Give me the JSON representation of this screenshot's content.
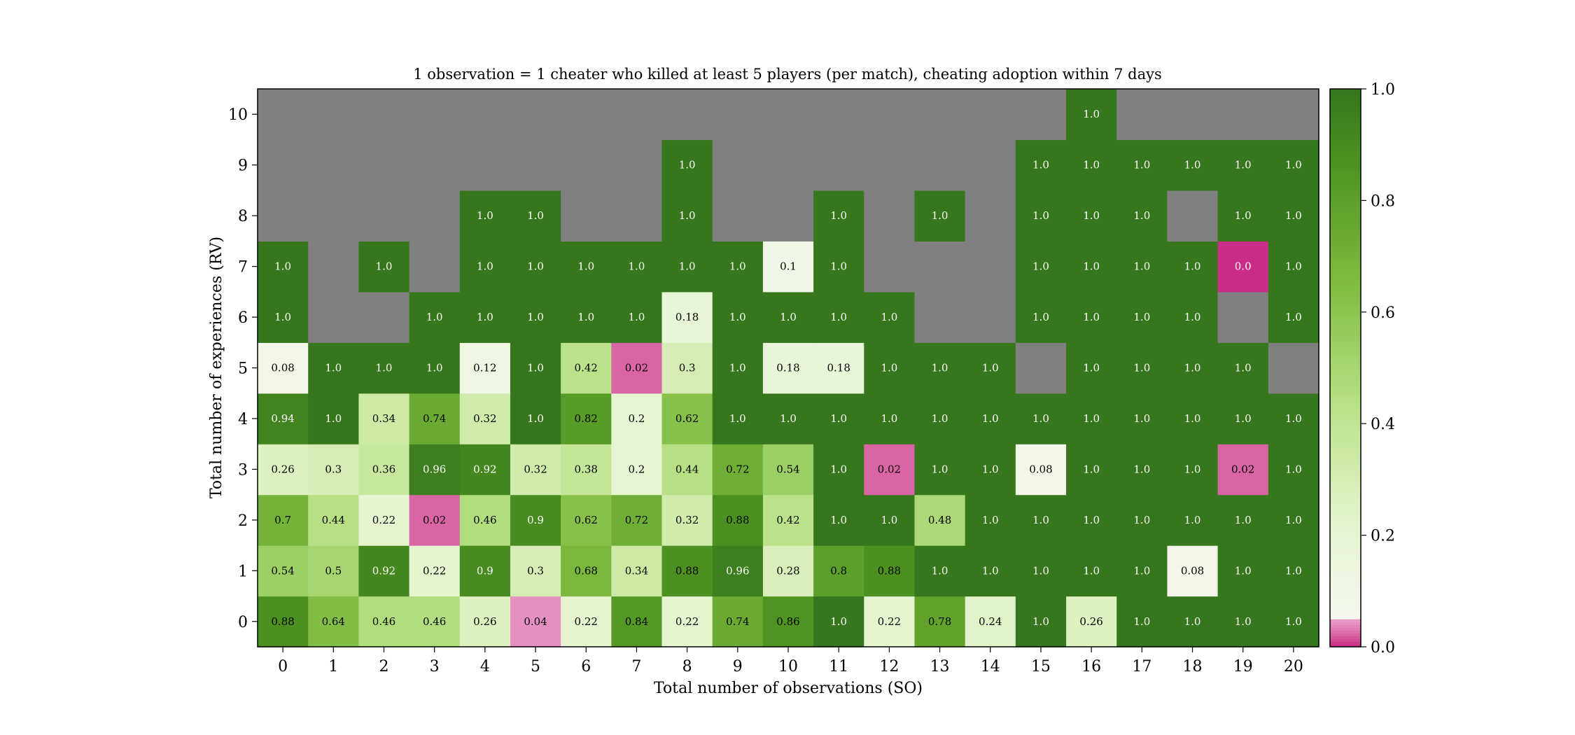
{
  "chart_data": {
    "type": "heatmap",
    "title": "1 observation = 1 cheater who killed at least 5 players (per match), cheating adoption within 7 days",
    "xlabel": "Total number of observations (SO)",
    "ylabel": "Total number of experiences (RV)",
    "x_ticks": [
      "0",
      "1",
      "2",
      "3",
      "4",
      "5",
      "6",
      "7",
      "8",
      "9",
      "10",
      "11",
      "12",
      "13",
      "14",
      "15",
      "16",
      "17",
      "18",
      "19",
      "20"
    ],
    "y_ticks": [
      "0",
      "1",
      "2",
      "3",
      "4",
      "5",
      "6",
      "7",
      "8",
      "9",
      "10"
    ],
    "colorbar": {
      "min": 0.0,
      "max": 1.0,
      "ticks": [
        "0.0",
        "0.2",
        "0.4",
        "0.6",
        "0.8",
        "1.0"
      ],
      "colormap": "PiYG",
      "missing_color": "#808080"
    },
    "rows_from_y0": [
      [
        0.88,
        0.64,
        0.46,
        0.46,
        0.26,
        0.04,
        0.22,
        0.84,
        0.22,
        0.74,
        0.86,
        1.0,
        0.22,
        0.78,
        0.24,
        1.0,
        0.26,
        1.0,
        1.0,
        1.0,
        1.0
      ],
      [
        0.54,
        0.5,
        0.92,
        0.22,
        0.9,
        0.3,
        0.68,
        0.34,
        0.88,
        0.96,
        0.28,
        0.8,
        0.88,
        1.0,
        1.0,
        1.0,
        1.0,
        1.0,
        0.08,
        1.0,
        1.0
      ],
      [
        0.7,
        0.44,
        0.22,
        0.02,
        0.46,
        0.9,
        0.62,
        0.72,
        0.32,
        0.88,
        0.42,
        1.0,
        1.0,
        0.48,
        1.0,
        1.0,
        1.0,
        1.0,
        1.0,
        1.0,
        1.0
      ],
      [
        0.26,
        0.3,
        0.36,
        0.96,
        0.92,
        0.32,
        0.38,
        0.2,
        0.44,
        0.72,
        0.54,
        1.0,
        0.02,
        1.0,
        1.0,
        0.08,
        1.0,
        1.0,
        1.0,
        0.02,
        1.0
      ],
      [
        0.94,
        1.0,
        0.34,
        0.74,
        0.32,
        1.0,
        0.82,
        0.2,
        0.62,
        1.0,
        1.0,
        1.0,
        1.0,
        1.0,
        1.0,
        1.0,
        1.0,
        1.0,
        1.0,
        1.0,
        1.0
      ],
      [
        0.08,
        1.0,
        1.0,
        1.0,
        0.12,
        1.0,
        0.42,
        0.02,
        0.3,
        1.0,
        0.18,
        0.18,
        1.0,
        1.0,
        1.0,
        null,
        1.0,
        1.0,
        1.0,
        1.0,
        null
      ],
      [
        1.0,
        null,
        null,
        1.0,
        1.0,
        1.0,
        1.0,
        1.0,
        0.18,
        1.0,
        1.0,
        1.0,
        1.0,
        null,
        null,
        1.0,
        1.0,
        1.0,
        1.0,
        null,
        1.0
      ],
      [
        1.0,
        null,
        1.0,
        null,
        1.0,
        1.0,
        1.0,
        1.0,
        1.0,
        1.0,
        0.1,
        1.0,
        null,
        null,
        null,
        1.0,
        1.0,
        1.0,
        1.0,
        0.0,
        1.0
      ],
      [
        null,
        null,
        null,
        null,
        1.0,
        1.0,
        null,
        null,
        1.0,
        null,
        null,
        1.0,
        null,
        1.0,
        null,
        1.0,
        1.0,
        1.0,
        null,
        1.0,
        1.0
      ],
      [
        null,
        null,
        null,
        null,
        null,
        null,
        null,
        null,
        1.0,
        null,
        null,
        null,
        null,
        null,
        null,
        1.0,
        1.0,
        1.0,
        1.0,
        1.0,
        1.0
      ],
      [
        null,
        null,
        null,
        null,
        null,
        null,
        null,
        null,
        null,
        null,
        null,
        null,
        null,
        null,
        null,
        null,
        1.0,
        null,
        null,
        null,
        null
      ]
    ]
  }
}
